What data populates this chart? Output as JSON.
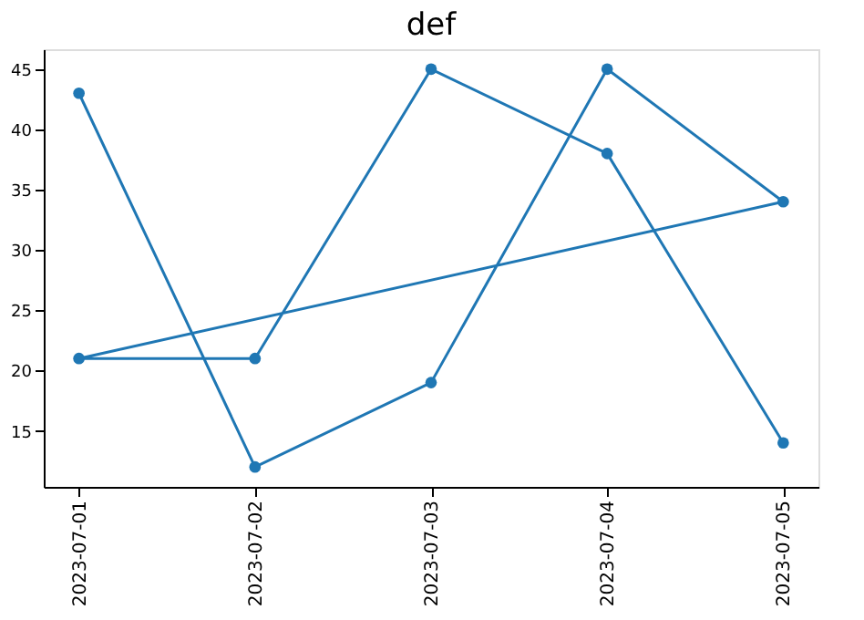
{
  "chart_data": {
    "type": "line",
    "title": "def",
    "x": [
      "2023-07-01",
      "2023-07-02",
      "2023-07-03",
      "2023-07-04",
      "2023-07-05",
      "2023-07-01",
      "2023-07-02",
      "2023-07-03",
      "2023-07-04",
      "2023-07-05"
    ],
    "series": [
      {
        "color": "#1f77b4",
        "values": [
          43,
          12,
          19,
          45,
          34,
          21,
          21,
          45,
          38,
          14
        ]
      }
    ],
    "xlim": [
      "2023-06-30T19:12",
      "2023-07-05T04:48"
    ],
    "xticks": [
      "2023-07-01",
      "2023-07-02",
      "2023-07-03",
      "2023-07-04",
      "2023-07-05"
    ],
    "ylim": [
      10.35,
      46.65
    ],
    "yticks": [
      15,
      20,
      25,
      30,
      35,
      40,
      45
    ],
    "grid": false,
    "marker": "circle",
    "line_style": "solid"
  }
}
